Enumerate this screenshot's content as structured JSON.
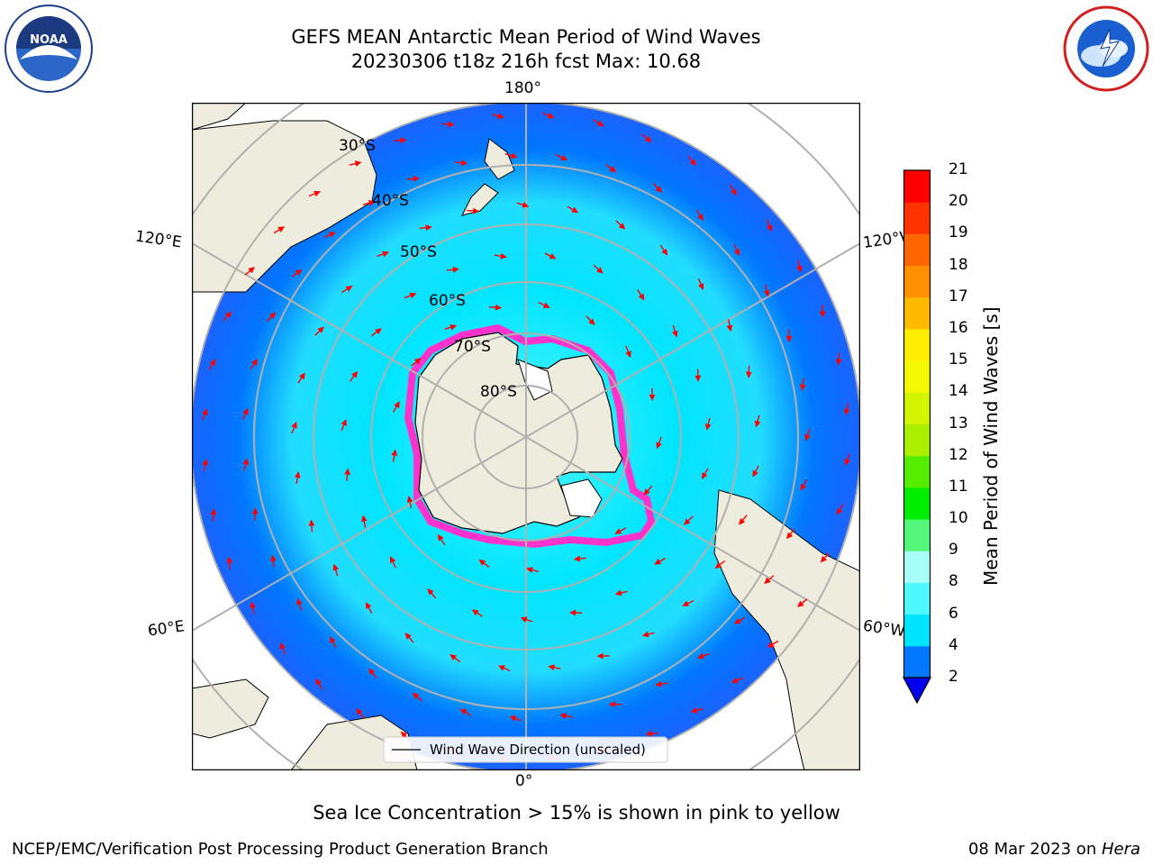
{
  "title": {
    "line1": "GEFS MEAN Antarctic Mean Period of Wind Waves",
    "line2": "20230306 t18z 216h fcst   Max: 10.68"
  },
  "logos": {
    "left": {
      "name": "noaa-logo",
      "text": "NOAA",
      "ring_text": "NATIONAL OCEANIC AND ATMOSPHERIC ADMINISTRATION · U.S. DEPARTMENT OF COMMERCE"
    },
    "right": {
      "name": "nws-logo",
      "ring_text": "NATIONAL WEATHER SERVICE"
    }
  },
  "map": {
    "projection": "south-polar-stereographic",
    "meridian_labels": {
      "top": "180°",
      "bottom": "0°",
      "left_upper": "120°E",
      "left_lower": "60°E",
      "right_upper": "120°W",
      "right_lower": "60°W"
    },
    "latitude_labels": [
      "30°S",
      "40°S",
      "50°S",
      "60°S",
      "70°S",
      "80°S"
    ],
    "legend_label": "Wind Wave Direction (unscaled)",
    "colors": {
      "land": "#eeecdc",
      "ice_edge": "#ff33cc",
      "arrow": "#ff0000",
      "grid": "#b0b0b0"
    }
  },
  "colorbar": {
    "label": "Mean Period of Wind Waves [s]",
    "ticks": [
      "2",
      "4",
      "6",
      "8",
      "9",
      "10",
      "11",
      "12",
      "13",
      "14",
      "15",
      "16",
      "17",
      "18",
      "19",
      "20",
      "21"
    ],
    "colors": [
      "#0000ee",
      "#0077ff",
      "#00e5ff",
      "#4ef8ff",
      "#a8fffa",
      "#55f77a",
      "#00ee00",
      "#55ee00",
      "#aaee00",
      "#d4f500",
      "#f4f800",
      "#ffee00",
      "#ffbb00",
      "#ff9000",
      "#ff6600",
      "#ff3300",
      "#ff0000"
    ]
  },
  "caption": "Sea Ice Concentration > 15% is shown in pink to yellow",
  "footer": {
    "left": "NCEP/EMC/Verification Post Processing Product Generation Branch",
    "date": "08 Mar 2023 on ",
    "machine": "Hera"
  }
}
